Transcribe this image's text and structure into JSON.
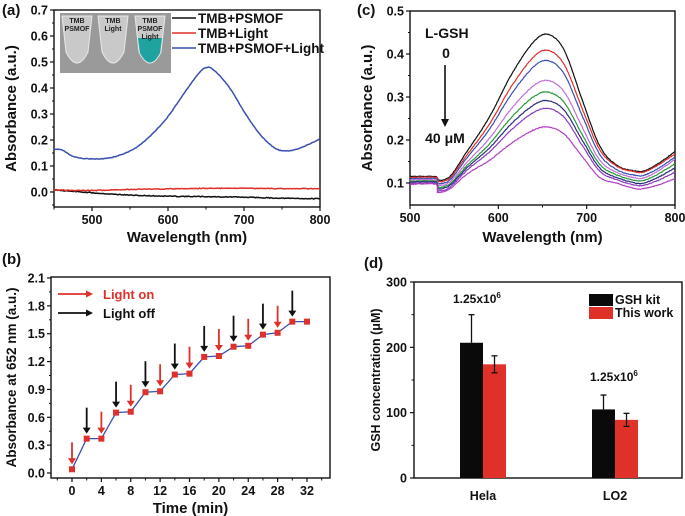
{
  "chart_data": [
    {
      "panel": "(a)",
      "type": "line",
      "xlabel": "Wavelength (nm)",
      "ylabel": "Absorbance (a.u.)",
      "xlim": [
        450,
        800
      ],
      "ylim": [
        -0.05,
        0.7
      ],
      "xticks": [
        500,
        600,
        700,
        800
      ],
      "yticks": [
        0.0,
        0.1,
        0.2,
        0.3,
        0.4,
        0.5,
        0.6,
        0.7
      ],
      "inset": {
        "type": "photo",
        "labels": [
          "TMB PSMOF",
          "TMB Light",
          "TMB PSMOF Light"
        ],
        "tube_colors": [
          "#b9b9b9",
          "#c4c4c4",
          "#1fa3a0"
        ]
      },
      "legend": "top-right",
      "series": [
        {
          "name": "TMB+PSMOF",
          "color": "#111111",
          "x": [
            450,
            500,
            550,
            600,
            650,
            700,
            750,
            800
          ],
          "y": [
            0.008,
            -0.003,
            -0.012,
            -0.016,
            -0.018,
            -0.02,
            -0.024,
            -0.026
          ]
        },
        {
          "name": "TMB+Light",
          "color": "#e0302a",
          "x": [
            450,
            500,
            550,
            600,
            650,
            700,
            750,
            800
          ],
          "y": [
            0.008,
            0.006,
            0.01,
            0.012,
            0.014,
            0.014,
            0.013,
            0.013
          ]
        },
        {
          "name": "TMB+PSMOF+Light",
          "color": "#3a4fb0",
          "x": [
            450,
            460,
            470,
            480,
            500,
            520,
            540,
            560,
            580,
            600,
            620,
            640,
            650,
            660,
            680,
            700,
            720,
            740,
            755,
            770,
            785,
            800
          ],
          "y": [
            0.165,
            0.163,
            0.145,
            0.133,
            0.127,
            0.13,
            0.145,
            0.175,
            0.225,
            0.29,
            0.375,
            0.455,
            0.478,
            0.47,
            0.405,
            0.31,
            0.225,
            0.17,
            0.158,
            0.165,
            0.183,
            0.205
          ]
        }
      ]
    },
    {
      "panel": "(b)",
      "type": "line",
      "xlabel": "Time (min)",
      "ylabel": "Absorbance at 652 nm (a.u.)",
      "xlim": [
        -3,
        35
      ],
      "ylim": [
        -0.05,
        2.1
      ],
      "xticks": [
        0,
        4,
        8,
        12,
        16,
        20,
        24,
        28,
        32
      ],
      "yticks": [
        0.0,
        0.3,
        0.6,
        0.9,
        1.2,
        1.5,
        1.8,
        2.1
      ],
      "legend": "top-left",
      "legend_entries": [
        {
          "label": "Light on",
          "color": "#e0302a"
        },
        {
          "label": "Light off",
          "color": "#111111"
        }
      ],
      "series": [
        {
          "name": "Absorbance",
          "line_color": "#3a4fb0",
          "marker_color": "#e0302a",
          "x": [
            0,
            2,
            4,
            6,
            8,
            10,
            12,
            14,
            16,
            18,
            20,
            22,
            24,
            26,
            28,
            30,
            32
          ],
          "y": [
            0.04,
            0.37,
            0.37,
            0.65,
            0.66,
            0.87,
            0.88,
            1.06,
            1.07,
            1.25,
            1.26,
            1.36,
            1.37,
            1.49,
            1.51,
            1.63,
            1.63
          ]
        }
      ],
      "light_on_times": [
        0,
        4,
        8,
        12,
        16,
        20,
        24,
        28
      ],
      "light_off_times": [
        2,
        6,
        10,
        14,
        18,
        22,
        26,
        30
      ]
    },
    {
      "panel": "(c)",
      "type": "line",
      "xlabel": "Wavelength (nm)",
      "ylabel": "Absorbance (a.u.)",
      "xlim": [
        500,
        800
      ],
      "ylim": [
        0.05,
        0.5
      ],
      "xticks": [
        500,
        600,
        700,
        800
      ],
      "yticks": [
        0.1,
        0.2,
        0.3,
        0.4,
        0.5
      ],
      "annotation": {
        "title": "L-GSH",
        "from": "0",
        "to": "40 μM"
      },
      "series_peaks": [
        0.445,
        0.408,
        0.384,
        0.338,
        0.311,
        0.291,
        0.273,
        0.23
      ],
      "series_start": [
        0.115,
        0.113,
        0.11,
        0.107,
        0.104,
        0.102,
        0.099,
        0.097
      ],
      "series_min": [
        0.128,
        0.126,
        0.118,
        0.112,
        0.106,
        0.1,
        0.095,
        0.087
      ],
      "series_end": [
        0.173,
        0.168,
        0.16,
        0.155,
        0.145,
        0.135,
        0.125,
        0.11
      ],
      "series_colors": [
        "#111111",
        "#e0302a",
        "#3a4fb0",
        "#c070d8",
        "#2a9a3a",
        "#2a2f7a",
        "#8a3ac0",
        "#b040c0"
      ]
    },
    {
      "panel": "(d)",
      "type": "bar",
      "ylabel": "GSH concentration (μM)",
      "ylim": [
        0,
        300
      ],
      "yticks": [
        0,
        100,
        200,
        300
      ],
      "categories": [
        "Hela",
        "LO2"
      ],
      "legend": "top-right",
      "annotations": [
        "1.25x10⁶",
        "1.25x10⁶"
      ],
      "series": [
        {
          "name": "GSH kit",
          "color": "#0a0a0a",
          "values": [
            207,
            105
          ],
          "errors": [
            43,
            22
          ]
        },
        {
          "name": "This work",
          "color": "#e0302a",
          "values": [
            174,
            89
          ],
          "errors": [
            13,
            10
          ]
        }
      ]
    }
  ]
}
